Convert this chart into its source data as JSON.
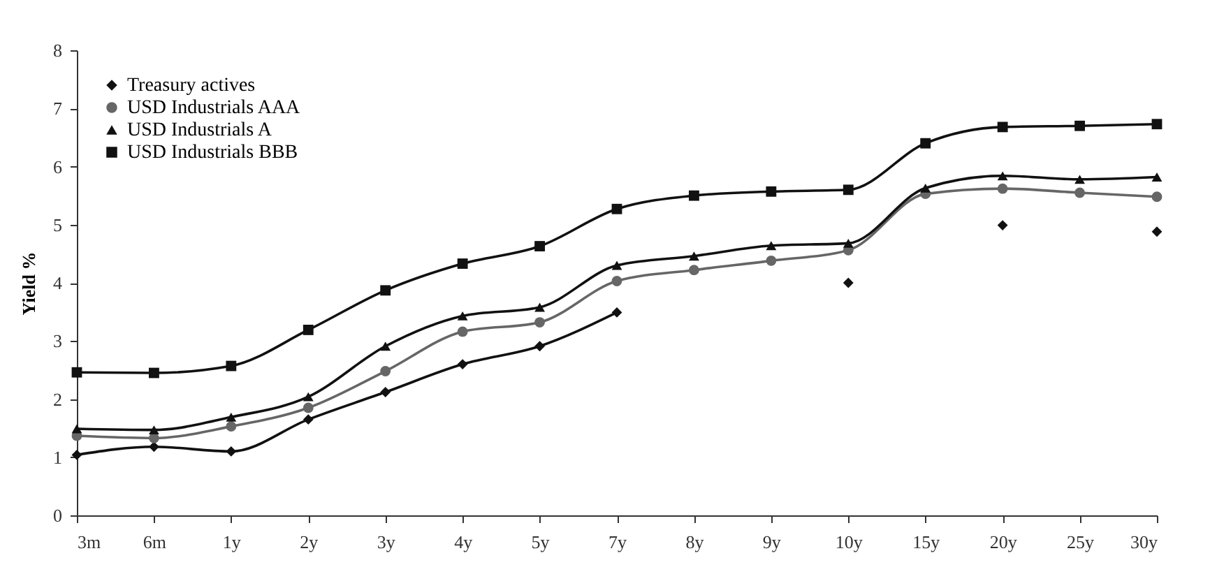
{
  "chart_data": {
    "type": "line",
    "ylabel": "Yield %",
    "categories": [
      "3m",
      "6m",
      "1y",
      "2y",
      "3y",
      "4y",
      "5y",
      "7y",
      "8y",
      "9y",
      "10y",
      "15y",
      "20y",
      "25y",
      "30y"
    ],
    "ylim": [
      0,
      8
    ],
    "yticks": [
      0,
      1,
      2,
      3,
      4,
      5,
      6,
      7,
      8
    ],
    "grid": false,
    "legend": "top left",
    "line_style": "solid",
    "series": [
      {
        "name": "Treasury actives",
        "color": "#111111",
        "marker": "diamond",
        "values": [
          1.04,
          1.18,
          1.1,
          1.65,
          2.12,
          2.6,
          2.91,
          3.49,
          null,
          null,
          4.0,
          null,
          4.99,
          null,
          4.88
        ]
      },
      {
        "name": "USD Industrials AAA",
        "color": "#666666",
        "marker": "circle",
        "values": [
          1.37,
          1.33,
          1.53,
          1.85,
          2.48,
          3.16,
          3.32,
          4.03,
          4.22,
          4.38,
          4.56,
          5.53,
          5.62,
          5.55,
          5.48
        ]
      },
      {
        "name": "USD Industrials A",
        "color": "#111111",
        "marker": "triangle",
        "values": [
          1.49,
          1.47,
          1.69,
          2.04,
          2.91,
          3.43,
          3.58,
          4.3,
          4.46,
          4.64,
          4.68,
          5.63,
          5.84,
          5.78,
          5.82
        ]
      },
      {
        "name": "USD Industrials BBB",
        "color": "#111111",
        "marker": "square",
        "values": [
          2.46,
          2.45,
          2.57,
          3.19,
          3.87,
          4.33,
          4.63,
          5.27,
          5.5,
          5.57,
          5.6,
          6.4,
          6.68,
          6.7,
          6.73
        ]
      }
    ]
  }
}
